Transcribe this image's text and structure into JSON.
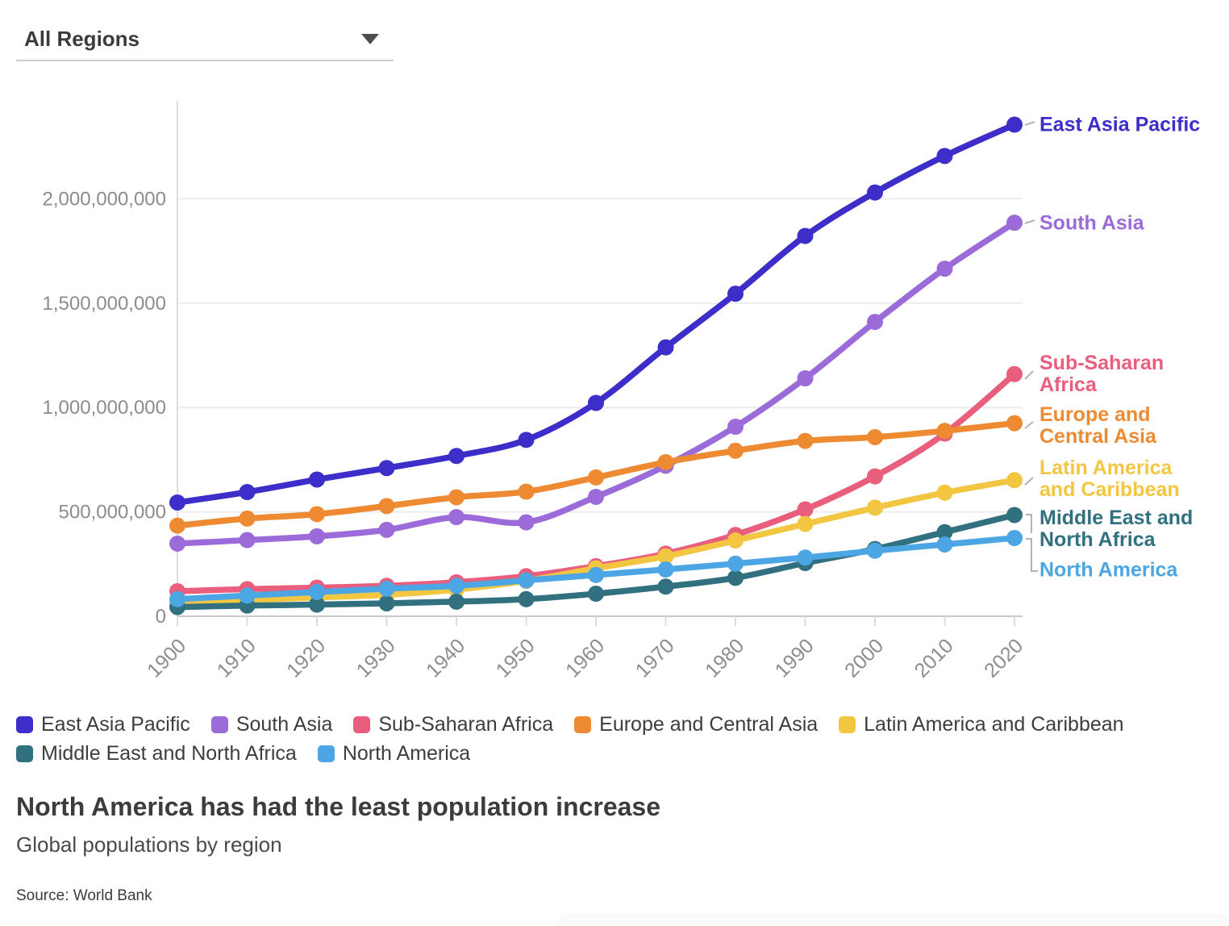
{
  "dropdown": {
    "value": "All Regions"
  },
  "chart_data": {
    "type": "line",
    "title": "North America has had the least population increase",
    "subtitle": "Global populations by region",
    "source": "Source: World Bank",
    "x": [
      1900,
      1910,
      1920,
      1930,
      1940,
      1950,
      1960,
      1970,
      1980,
      1990,
      2000,
      2010,
      2020
    ],
    "xlabel": "",
    "ylabel": "",
    "ylim": [
      0,
      2400000000
    ],
    "y_ticks": [
      0,
      500000000,
      1000000000,
      1500000000,
      2000000000
    ],
    "y_tick_labels": [
      "0",
      "500,000,000",
      "1,000,000,000",
      "1,500,000,000",
      "2,000,000,000"
    ],
    "grid": "horizontal",
    "legend_position": "bottom",
    "series": [
      {
        "name": "East Asia Pacific",
        "color": "#3d2ec9",
        "values": [
          545000000,
          595000000,
          655000000,
          710000000,
          768000000,
          845000000,
          1022000000,
          1288000000,
          1545000000,
          1822000000,
          2030000000,
          2205000000,
          2355000000
        ]
      },
      {
        "name": "South Asia",
        "color": "#9b6bd9",
        "values": [
          348000000,
          365000000,
          383000000,
          414000000,
          475000000,
          450000000,
          572000000,
          721000000,
          908000000,
          1140000000,
          1410000000,
          1665000000,
          1885000000
        ]
      },
      {
        "name": "Sub-Saharan Africa",
        "color": "#ea5e7d",
        "values": [
          120000000,
          130000000,
          137000000,
          146000000,
          163000000,
          192000000,
          240000000,
          300000000,
          390000000,
          512000000,
          670000000,
          875000000,
          1160000000
        ]
      },
      {
        "name": "Europe and Central Asia",
        "color": "#ee8a31",
        "values": [
          434000000,
          468000000,
          489000000,
          528000000,
          570000000,
          597000000,
          665000000,
          738000000,
          793000000,
          840000000,
          858000000,
          888000000,
          925000000
        ]
      },
      {
        "name": "Latin America and Caribbean",
        "color": "#f3c642",
        "values": [
          66000000,
          78000000,
          90000000,
          103000000,
          128000000,
          170000000,
          230000000,
          287000000,
          363000000,
          442000000,
          520000000,
          592000000,
          652000000
        ]
      },
      {
        "name": "Middle East and North Africa",
        "color": "#30707f",
        "values": [
          44000000,
          51000000,
          56000000,
          62000000,
          70000000,
          82000000,
          108000000,
          142000000,
          184000000,
          255000000,
          322000000,
          403000000,
          485000000
        ]
      },
      {
        "name": "North America",
        "color": "#4ba6e3",
        "values": [
          82000000,
          99000000,
          116000000,
          132000000,
          146000000,
          172000000,
          198000000,
          224000000,
          252000000,
          281000000,
          314000000,
          344000000,
          375000000
        ]
      }
    ]
  }
}
